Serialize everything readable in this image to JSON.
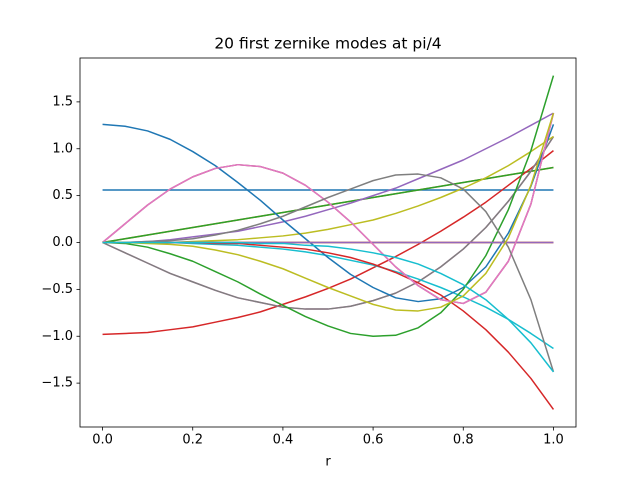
{
  "chart_data": {
    "type": "line",
    "title": "20 first zernike modes at pi/4",
    "xlabel": "r",
    "x": [
      0,
      0.05,
      0.1,
      0.15,
      0.2,
      0.25,
      0.3,
      0.35,
      0.4,
      0.45,
      0.5,
      0.55,
      0.6,
      0.65,
      0.7,
      0.75,
      0.8,
      0.85,
      0.9,
      0.95,
      1
    ],
    "xlim": [
      -0.05,
      1.05
    ],
    "xticks": [
      {
        "value": 0,
        "label": "0.0"
      },
      0.2,
      0.4,
      0.6,
      0.8,
      {
        "value": 1,
        "label": "1.0"
      }
    ],
    "ylim": [
      -1.968,
      1.968
    ],
    "yticks": [
      {
        "value": -1.5,
        "label": "−1.5"
      },
      {
        "value": -1,
        "label": "−1.0"
      },
      {
        "value": -0.5,
        "label": "−0.5"
      },
      {
        "value": 0,
        "label": "0.0"
      },
      0.5,
      {
        "value": 1,
        "label": "1.0"
      },
      1.5
    ],
    "series": [
      {
        "color": "#1f77b4",
        "values": [
          0.56,
          0.56,
          0.56,
          0.56,
          0.56,
          0.56,
          0.56,
          0.56,
          0.56,
          0.56,
          0.56,
          0.56,
          0.56,
          0.56,
          0.56,
          0.56,
          0.56,
          0.56,
          0.56,
          0.56,
          0.56
        ]
      },
      {
        "color": "#ff7f0e",
        "values": [
          0,
          0.04,
          0.08,
          0.12,
          0.16,
          0.2,
          0.24,
          0.28,
          0.32,
          0.36,
          0.4,
          0.44,
          0.48,
          0.52,
          0.56,
          0.6,
          0.64,
          0.68,
          0.72,
          0.76,
          0.8
        ]
      },
      {
        "color": "#2ca02c",
        "values": [
          0,
          0.04,
          0.08,
          0.12,
          0.16,
          0.2,
          0.24,
          0.28,
          0.32,
          0.36,
          0.4,
          0.44,
          0.48,
          0.52,
          0.56,
          0.6,
          0.64,
          0.68,
          0.72,
          0.76,
          0.8
        ]
      },
      {
        "color": "#d62728",
        "values": [
          -0.98,
          -0.97,
          -0.96,
          -0.93,
          -0.9,
          -0.85,
          -0.8,
          -0.74,
          -0.66,
          -0.58,
          -0.49,
          -0.39,
          -0.27,
          -0.15,
          -0.02,
          0.12,
          0.27,
          0.43,
          0.61,
          0.79,
          0.98
        ]
      },
      {
        "color": "#9467bd",
        "values": [
          0,
          0,
          0.01,
          0.03,
          0.06,
          0.09,
          0.12,
          0.17,
          0.22,
          0.28,
          0.35,
          0.42,
          0.5,
          0.58,
          0.68,
          0.78,
          0.88,
          1,
          1.12,
          1.25,
          1.38
        ]
      },
      {
        "color": "#8c564b",
        "values": [
          0,
          0,
          0,
          0,
          0,
          0,
          0,
          0,
          0,
          0,
          0,
          0,
          0,
          0,
          0,
          0,
          0,
          0,
          0,
          0,
          0
        ]
      },
      {
        "color": "#e377c2",
        "values": [
          0,
          -0.11,
          -0.22,
          -0.33,
          -0.42,
          -0.51,
          -0.59,
          -0.64,
          -0.69,
          -0.71,
          -0.71,
          -0.68,
          -0.62,
          -0.54,
          -0.42,
          -0.26,
          -0.07,
          0.16,
          0.44,
          0.76,
          1.13
        ]
      },
      {
        "color": "#7f7f7f",
        "values": [
          0,
          -0.11,
          -0.22,
          -0.33,
          -0.42,
          -0.51,
          -0.59,
          -0.64,
          -0.69,
          -0.71,
          -0.71,
          -0.68,
          -0.62,
          -0.54,
          -0.42,
          -0.26,
          -0.07,
          0.16,
          0.44,
          0.76,
          1.13
        ]
      },
      {
        "color": "#bcbd22",
        "values": [
          0,
          0,
          0,
          0,
          0.01,
          0.02,
          0.03,
          0.05,
          0.07,
          0.1,
          0.14,
          0.19,
          0.24,
          0.31,
          0.39,
          0.48,
          0.58,
          0.69,
          0.82,
          0.97,
          1.13
        ]
      },
      {
        "color": "#17becf",
        "values": [
          0,
          0,
          0,
          0,
          -0.01,
          -0.02,
          -0.03,
          -0.05,
          -0.07,
          -0.1,
          -0.14,
          -0.19,
          -0.24,
          -0.31,
          -0.39,
          -0.48,
          -0.58,
          -0.69,
          -0.82,
          -0.97,
          -1.13
        ]
      },
      {
        "color": "#1f77b4",
        "values": [
          1.26,
          1.24,
          1.19,
          1.1,
          0.97,
          0.82,
          0.64,
          0.45,
          0.24,
          0.04,
          -0.16,
          -0.34,
          -0.48,
          -0.59,
          -0.63,
          -0.6,
          -0.48,
          -0.26,
          0.1,
          0.6,
          1.26
        ]
      },
      {
        "color": "#ff7f0e",
        "values": [
          0,
          0,
          0,
          0,
          0,
          0,
          0,
          0,
          0,
          0,
          0,
          0,
          0,
          0,
          0,
          0,
          0,
          0,
          0,
          0,
          0
        ]
      },
      {
        "color": "#2ca02c",
        "values": [
          0,
          -0.01,
          -0.05,
          -0.12,
          -0.2,
          -0.31,
          -0.42,
          -0.55,
          -0.67,
          -0.79,
          -0.89,
          -0.97,
          -1,
          -0.99,
          -0.91,
          -0.75,
          -0.5,
          -0.14,
          0.35,
          0.98,
          1.78
        ]
      },
      {
        "color": "#d62728",
        "values": [
          0,
          0,
          0,
          0,
          0,
          -0.01,
          -0.01,
          -0.03,
          -0.05,
          -0.07,
          -0.11,
          -0.16,
          -0.23,
          -0.32,
          -0.43,
          -0.56,
          -0.73,
          -0.93,
          -1.17,
          -1.45,
          -1.78
        ]
      },
      {
        "color": "#9467bd",
        "values": [
          0,
          0,
          0,
          0,
          0,
          0,
          0,
          0,
          0,
          0,
          0,
          0,
          0,
          0,
          0,
          0,
          0,
          0,
          0,
          0,
          0
        ]
      },
      {
        "color": "#8c564b",
        "values": [
          0,
          0.2,
          0.4,
          0.57,
          0.7,
          0.79,
          0.83,
          0.81,
          0.74,
          0.61,
          0.43,
          0.22,
          -0.02,
          -0.26,
          -0.46,
          -0.61,
          -0.65,
          -0.53,
          -0.2,
          0.41,
          1.38
        ]
      },
      {
        "color": "#e377c2",
        "values": [
          0,
          0.2,
          0.4,
          0.57,
          0.7,
          0.79,
          0.83,
          0.81,
          0.74,
          0.61,
          0.43,
          0.22,
          -0.02,
          -0.26,
          -0.46,
          -0.61,
          -0.65,
          -0.53,
          -0.2,
          0.41,
          1.38
        ]
      },
      {
        "color": "#7f7f7f",
        "values": [
          0,
          0,
          0.01,
          0.02,
          0.04,
          0.08,
          0.13,
          0.2,
          0.28,
          0.38,
          0.48,
          0.57,
          0.66,
          0.72,
          0.73,
          0.69,
          0.57,
          0.33,
          -0.05,
          -0.61,
          -1.38
        ]
      },
      {
        "color": "#bcbd22",
        "values": [
          0,
          0,
          -0.01,
          -0.02,
          -0.04,
          -0.08,
          -0.13,
          -0.2,
          -0.28,
          -0.38,
          -0.48,
          -0.57,
          -0.66,
          -0.72,
          -0.73,
          -0.69,
          -0.57,
          -0.33,
          0.05,
          0.61,
          1.38
        ]
      },
      {
        "color": "#17becf",
        "values": [
          0,
          0,
          0,
          0,
          0,
          0,
          0,
          -0.01,
          -0.01,
          -0.03,
          -0.04,
          -0.07,
          -0.11,
          -0.16,
          -0.23,
          -0.33,
          -0.45,
          -0.61,
          -0.82,
          -1.07,
          -1.38
        ]
      }
    ]
  }
}
